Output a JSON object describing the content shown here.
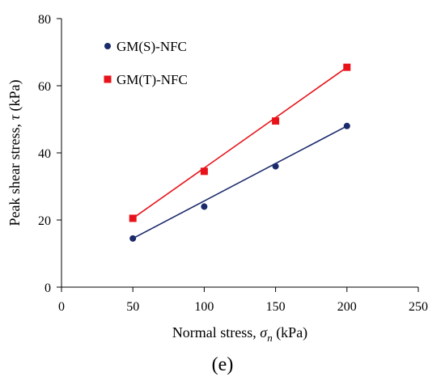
{
  "chart_data": {
    "type": "scatter",
    "xlabel": "Normal stress, σn (kPa)",
    "xlabel_parts": {
      "prefix": "Normal stress, ",
      "symbol": "σ",
      "subscript": "n",
      "suffix": " (kPa)"
    },
    "ylabel": "Peak shear stress, τ (kPa)",
    "ylabel_parts": {
      "prefix": "Peak shear stress, ",
      "symbol": "τ",
      "suffix": " (kPa)"
    },
    "xlim": [
      0,
      250
    ],
    "ylim": [
      0,
      80
    ],
    "xticks": [
      0,
      50,
      100,
      150,
      200,
      250
    ],
    "yticks": [
      0,
      20,
      40,
      60,
      80
    ],
    "grid": false,
    "legend_position": "top-left",
    "series": [
      {
        "name": "GM(S)-NFC",
        "marker": "circle",
        "color": "#1b2a6b",
        "x": [
          50,
          100,
          150,
          200
        ],
        "y": [
          14.5,
          24,
          36,
          48
        ],
        "fit_line": {
          "x": [
            50,
            200
          ],
          "y": [
            14.5,
            48
          ]
        }
      },
      {
        "name": "GM(T)-NFC",
        "marker": "square",
        "color": "#e8131a",
        "x": [
          50,
          100,
          150,
          200
        ],
        "y": [
          20.5,
          34.5,
          49.5,
          65.5
        ],
        "fit_line": {
          "x": [
            50,
            200
          ],
          "y": [
            20.5,
            65.5
          ]
        }
      }
    ]
  },
  "panel_label": "(e)"
}
